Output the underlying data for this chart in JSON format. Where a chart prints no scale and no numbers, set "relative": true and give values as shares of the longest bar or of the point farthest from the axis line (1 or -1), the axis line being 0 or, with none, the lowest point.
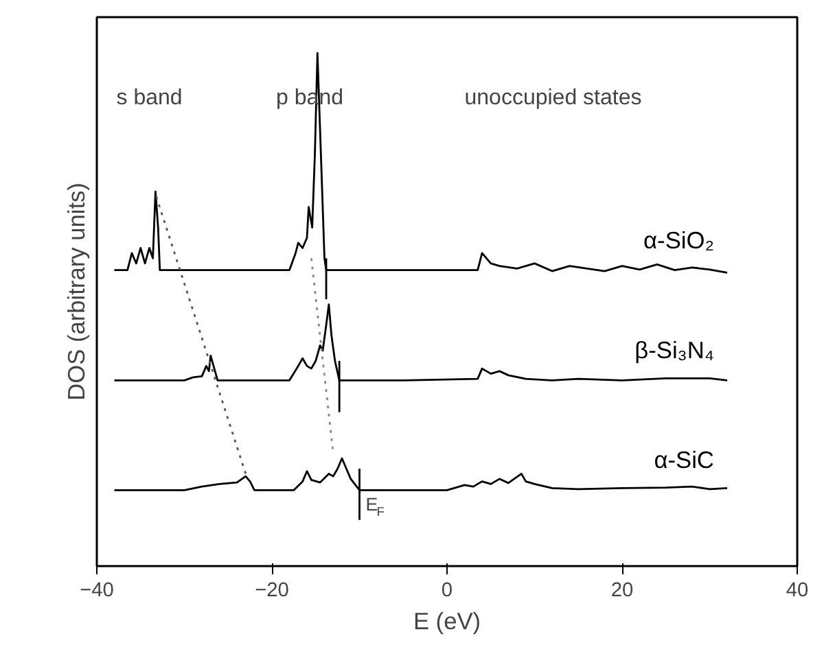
{
  "chart_data": {
    "type": "line",
    "xlabel": "E (eV)",
    "ylabel": "DOS (arbitrary units)",
    "relative": true,
    "xlim": [
      -40,
      40
    ],
    "xticks": [
      -40,
      -20,
      0,
      20,
      40
    ],
    "grid": false,
    "marker": "none",
    "line_style": "solid",
    "series": [
      {
        "name": "α-SiO₂",
        "color": "#000000",
        "x": [
          -38,
          -36.5,
          -36,
          -35.5,
          -35,
          -34.5,
          -34,
          -33.6,
          -33.3,
          -33.0,
          -32.8,
          -25,
          -18,
          -17.3,
          -17,
          -16.5,
          -16,
          -15.8,
          -15.4,
          -15.1,
          -14.8,
          -14.5,
          -14.2,
          -14,
          -13.8,
          -13.5,
          -13,
          -5,
          3.5,
          4,
          4.5,
          5,
          6,
          8,
          10,
          12,
          14,
          16,
          18,
          20,
          22,
          24,
          26,
          28,
          30,
          32
        ],
        "values": [
          0.577,
          0.577,
          0.61,
          0.59,
          0.62,
          0.59,
          0.62,
          0.6,
          0.73,
          0.66,
          0.577,
          0.577,
          0.577,
          0.61,
          0.63,
          0.62,
          0.64,
          0.7,
          0.66,
          0.8,
          1.0,
          0.85,
          0.7,
          0.6,
          0.577,
          0.577,
          0.577,
          0.577,
          0.577,
          0.61,
          0.6,
          0.59,
          0.585,
          0.58,
          0.59,
          0.575,
          0.585,
          0.58,
          0.575,
          0.585,
          0.578,
          0.588,
          0.577,
          0.582,
          0.578,
          0.572
        ]
      },
      {
        "name": "β-Si₃N₄",
        "color": "#000000",
        "x": [
          -38,
          -30,
          -29,
          -28,
          -27.5,
          -27.2,
          -27,
          -26.5,
          -26.2,
          -18,
          -17,
          -16.5,
          -16,
          -15.5,
          -15,
          -14.5,
          -14.2,
          -13.8,
          -13.5,
          -13.2,
          -12.8,
          -12.3,
          -5,
          3.5,
          4,
          5,
          6,
          7,
          9,
          12,
          15,
          20,
          25,
          30,
          32
        ],
        "values": [
          0.362,
          0.362,
          0.368,
          0.37,
          0.39,
          0.38,
          0.41,
          0.38,
          0.362,
          0.362,
          0.39,
          0.405,
          0.39,
          0.385,
          0.4,
          0.43,
          0.42,
          0.47,
          0.51,
          0.45,
          0.4,
          0.362,
          0.362,
          0.365,
          0.385,
          0.375,
          0.38,
          0.372,
          0.365,
          0.362,
          0.365,
          0.362,
          0.366,
          0.366,
          0.362
        ]
      },
      {
        "name": "α-SiC",
        "color": "#000000",
        "x": [
          -38,
          -30,
          -28,
          -26,
          -24,
          -23,
          -22.5,
          -22,
          -17.5,
          -16.5,
          -16,
          -15.5,
          -14.5,
          -13.5,
          -13,
          -12.5,
          -12,
          -11.5,
          -11,
          -10,
          0,
          2,
          3,
          4,
          5,
          6,
          7,
          8.5,
          9,
          10,
          12,
          15,
          20,
          25,
          28,
          30,
          32
        ],
        "values": [
          0.148,
          0.148,
          0.155,
          0.16,
          0.163,
          0.175,
          0.165,
          0.148,
          0.148,
          0.165,
          0.185,
          0.168,
          0.163,
          0.18,
          0.175,
          0.19,
          0.21,
          0.19,
          0.17,
          0.148,
          0.148,
          0.158,
          0.155,
          0.165,
          0.16,
          0.17,
          0.162,
          0.18,
          0.165,
          0.16,
          0.152,
          0.15,
          0.152,
          0.153,
          0.155,
          0.15,
          0.152
        ]
      },
      {
        "color": "#000000",
        "x": [
          -13.8,
          -13.8
        ],
        "values": [
          0.6,
          0.52
        ]
      },
      {
        "color": "#000000",
        "x": [
          -12.3,
          -12.3
        ],
        "values": [
          0.4,
          0.3
        ]
      },
      {
        "color": "#000000",
        "x": [
          -10,
          -10
        ],
        "values": [
          0.19,
          0.09
        ]
      },
      {
        "color": "#555555",
        "line_style": "dotted",
        "x": [
          -33.2,
          -23
        ],
        "values": [
          0.72,
          0.18
        ]
      },
      {
        "color": "#888888",
        "line_style": "dotted",
        "x": [
          -15.5,
          -13
        ],
        "values": [
          0.6,
          0.22
        ]
      }
    ],
    "annotations": [
      "s band",
      "p band",
      "unoccupied states",
      {
        "text": "E$_{F}$",
        "x": -9.3,
        "y": 0.1
      }
    ]
  }
}
